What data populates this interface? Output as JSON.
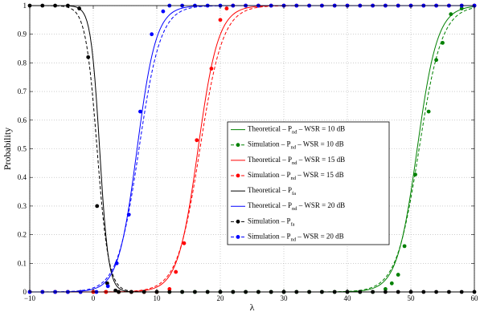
{
  "chart_data": {
    "type": "line",
    "xlabel": "λ",
    "ylabel": "Probability",
    "xlim": [
      -10,
      60
    ],
    "ylim": [
      0,
      1
    ],
    "xticks": [
      "−10",
      "0",
      "10",
      "20",
      "30",
      "40",
      "50",
      "60"
    ],
    "yticks": [
      "0",
      "0.1",
      "0.2",
      "0.3",
      "0.4",
      "0.5",
      "0.6",
      "0.7",
      "0.8",
      "0.9",
      "1"
    ],
    "grid": true,
    "legend_position": "right-center",
    "colors": {
      "green": "#008000",
      "red": "#ff0000",
      "black": "#000000",
      "blue": "#0000ff"
    },
    "series": [
      {
        "legend": {
          "prefix": "Theoretical – P",
          "sub": "nd",
          "suffix": " – WSR = 10 dB"
        },
        "kind": "theoretical",
        "color": "#008000",
        "shape": "rise",
        "mu": 51.0,
        "s": 1.6
      },
      {
        "legend": {
          "prefix": "Simulation – P",
          "sub": "nd",
          "suffix": " – WSR = 10 dB"
        },
        "kind": "simulation",
        "color": "#008000",
        "shape": "rise",
        "mu": 51.3,
        "s": 1.8,
        "points": [
          [
            -10,
            0
          ],
          [
            -8,
            0
          ],
          [
            -6,
            0
          ],
          [
            -4,
            0
          ],
          [
            -2,
            0
          ],
          [
            0,
            0
          ],
          [
            2,
            0
          ],
          [
            4,
            0
          ],
          [
            6,
            0
          ],
          [
            8,
            0
          ],
          [
            10,
            0
          ],
          [
            12,
            0
          ],
          [
            14,
            0
          ],
          [
            16,
            0
          ],
          [
            18,
            0
          ],
          [
            20,
            0
          ],
          [
            22,
            0
          ],
          [
            24,
            0
          ],
          [
            26,
            0
          ],
          [
            28,
            0
          ],
          [
            30,
            0
          ],
          [
            32,
            0
          ],
          [
            34,
            0
          ],
          [
            36,
            0
          ],
          [
            38,
            0
          ],
          [
            40,
            0
          ],
          [
            42,
            0
          ],
          [
            44,
            0
          ],
          [
            46,
            0.01
          ],
          [
            47,
            0.03
          ],
          [
            48,
            0.06
          ],
          [
            49,
            0.16
          ],
          [
            50.7,
            0.41
          ],
          [
            52.8,
            0.63
          ],
          [
            54,
            0.81
          ],
          [
            55,
            0.87
          ],
          [
            56.3,
            0.97
          ],
          [
            58,
            0.99
          ],
          [
            60,
            1
          ]
        ]
      },
      {
        "legend": {
          "prefix": "Theoretical – P",
          "sub": "nd",
          "suffix": " – WSR = 15 dB"
        },
        "kind": "theoretical",
        "color": "#ff0000",
        "shape": "rise",
        "mu": 16.5,
        "s": 1.6
      },
      {
        "legend": {
          "prefix": "Simulation – P",
          "sub": "nd",
          "suffix": " – WSR = 15 dB"
        },
        "kind": "simulation",
        "color": "#ff0000",
        "shape": "rise",
        "mu": 16.8,
        "s": 1.8,
        "points": [
          [
            -10,
            0
          ],
          [
            -8,
            0
          ],
          [
            -6,
            0
          ],
          [
            -4,
            0
          ],
          [
            -2,
            0
          ],
          [
            0,
            0
          ],
          [
            2,
            0
          ],
          [
            4,
            0
          ],
          [
            6,
            0
          ],
          [
            8,
            0
          ],
          [
            10,
            0
          ],
          [
            12,
            0.01
          ],
          [
            13,
            0.07
          ],
          [
            14.3,
            0.17
          ],
          [
            16.3,
            0.53
          ],
          [
            18.6,
            0.78
          ],
          [
            20,
            0.95
          ],
          [
            21,
            0.99
          ],
          [
            22,
            1
          ],
          [
            24,
            1
          ],
          [
            26,
            1
          ],
          [
            28,
            1
          ],
          [
            30,
            1
          ],
          [
            32,
            1
          ],
          [
            34,
            1
          ],
          [
            36,
            1
          ],
          [
            38,
            1
          ],
          [
            40,
            1
          ],
          [
            42,
            1
          ],
          [
            44,
            1
          ],
          [
            46,
            1
          ],
          [
            48,
            1
          ],
          [
            50,
            1
          ],
          [
            52,
            1
          ],
          [
            54,
            1
          ],
          [
            56,
            1
          ],
          [
            58,
            1
          ],
          [
            60,
            1
          ]
        ]
      },
      {
        "legend": {
          "prefix": "Theoretical – P",
          "sub": "fa",
          "suffix": ""
        },
        "kind": "theoretical",
        "color": "#000000",
        "shape": "fall",
        "mu": 1.0,
        "s": 0.7
      },
      {
        "legend": {
          "prefix": "Theoretical – P",
          "sub": "nd",
          "suffix": " – WSR = 20 dB"
        },
        "kind": "theoretical",
        "color": "#0000ff",
        "shape": "rise",
        "mu": 6.9,
        "s": 1.5
      },
      {
        "legend": {
          "prefix": "Simulation – P",
          "sub": "fa",
          "suffix": ""
        },
        "kind": "simulation",
        "color": "#000000",
        "shape": "fall",
        "mu": 0.6,
        "s": 0.9,
        "points": [
          [
            -10,
            1
          ],
          [
            -8,
            1
          ],
          [
            -6,
            1
          ],
          [
            -4,
            1
          ],
          [
            -2.2,
            0.99
          ],
          [
            -0.8,
            0.82
          ],
          [
            0.6,
            0.3
          ],
          [
            2.2,
            0.03
          ],
          [
            3.5,
            0.005
          ],
          [
            4,
            0
          ],
          [
            6,
            0
          ],
          [
            8,
            0
          ],
          [
            10,
            0
          ],
          [
            12,
            0
          ],
          [
            14,
            0
          ],
          [
            16,
            0
          ],
          [
            18,
            0
          ],
          [
            20,
            0
          ],
          [
            22,
            0
          ],
          [
            24,
            0
          ],
          [
            26,
            0
          ],
          [
            28,
            0
          ],
          [
            30,
            0
          ],
          [
            32,
            0
          ],
          [
            34,
            0
          ],
          [
            36,
            0
          ],
          [
            38,
            0
          ],
          [
            40,
            0
          ],
          [
            42,
            0
          ],
          [
            44,
            0
          ],
          [
            46,
            0
          ],
          [
            48,
            0
          ],
          [
            50,
            0
          ],
          [
            52,
            0
          ],
          [
            54,
            0
          ],
          [
            56,
            0
          ],
          [
            58,
            0
          ],
          [
            60,
            0
          ]
        ]
      },
      {
        "legend": {
          "prefix": "Simulation – P",
          "sub": "nd",
          "suffix": " – WSR = 20 dB"
        },
        "kind": "simulation",
        "color": "#0000ff",
        "shape": "rise",
        "mu": 7.2,
        "s": 1.7,
        "points": [
          [
            -10,
            0
          ],
          [
            -8,
            0
          ],
          [
            -6,
            0
          ],
          [
            -4,
            0
          ],
          [
            -2,
            0
          ],
          [
            0.5,
            0
          ],
          [
            2.3,
            0.02
          ],
          [
            3.7,
            0.1
          ],
          [
            5.6,
            0.27
          ],
          [
            7.4,
            0.63
          ],
          [
            9.2,
            0.9
          ],
          [
            11,
            0.98
          ],
          [
            12,
            1
          ],
          [
            14,
            1
          ],
          [
            16,
            1
          ],
          [
            18,
            1
          ],
          [
            20,
            1
          ],
          [
            22,
            1
          ],
          [
            24,
            1
          ],
          [
            26,
            1
          ],
          [
            28,
            1
          ],
          [
            30,
            1
          ],
          [
            32,
            1
          ],
          [
            34,
            1
          ],
          [
            36,
            1
          ],
          [
            38,
            1
          ],
          [
            40,
            1
          ],
          [
            42,
            1
          ],
          [
            44,
            1
          ],
          [
            46,
            1
          ],
          [
            48,
            1
          ],
          [
            50,
            1
          ],
          [
            52,
            1
          ],
          [
            54,
            1
          ],
          [
            56,
            1
          ],
          [
            58,
            1
          ],
          [
            60,
            1
          ]
        ]
      }
    ]
  }
}
